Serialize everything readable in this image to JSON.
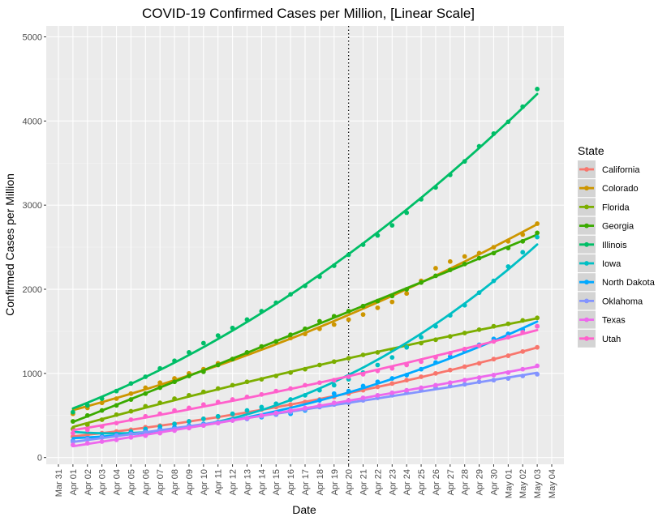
{
  "chart_data": {
    "type": "scatter",
    "title": "COVID-19 Confirmed Cases per Million, [Linear Scale]",
    "xlabel": "Date",
    "ylabel": "Confirmed Cases per Million",
    "x_ticks": [
      "Mar 31",
      "Apr 01",
      "Apr 02",
      "Apr 03",
      "Apr 04",
      "Apr 05",
      "Apr 06",
      "Apr 07",
      "Apr 08",
      "Apr 09",
      "Apr 10",
      "Apr 11",
      "Apr 12",
      "Apr 13",
      "Apr 14",
      "Apr 15",
      "Apr 16",
      "Apr 17",
      "Apr 18",
      "Apr 19",
      "Apr 20",
      "Apr 21",
      "Apr 22",
      "Apr 23",
      "Apr 24",
      "Apr 25",
      "Apr 26",
      "Apr 27",
      "Apr 28",
      "Apr 29",
      "Apr 30",
      "May 01",
      "May 02",
      "May 03",
      "May 04"
    ],
    "y_ticks": [
      0,
      1000,
      2000,
      3000,
      4000,
      5000
    ],
    "ylim": [
      -80,
      5130
    ],
    "xlim": [
      "Mar 31",
      "May 04"
    ],
    "vline": "Apr 20",
    "grid": true,
    "legend_title": "State",
    "legend_position": "right",
    "x_dates": [
      "Apr 01",
      "Apr 02",
      "Apr 03",
      "Apr 04",
      "Apr 05",
      "Apr 06",
      "Apr 07",
      "Apr 08",
      "Apr 09",
      "Apr 10",
      "Apr 11",
      "Apr 12",
      "Apr 13",
      "Apr 14",
      "Apr 15",
      "Apr 16",
      "Apr 17",
      "Apr 18",
      "Apr 19",
      "Apr 20",
      "Apr 21",
      "Apr 22",
      "Apr 23",
      "Apr 24",
      "Apr 25",
      "Apr 26",
      "Apr 27",
      "Apr 28",
      "Apr 29",
      "Apr 30",
      "May 01",
      "May 02",
      "May 03"
    ],
    "series": [
      {
        "name": "California",
        "color": "#F8766D",
        "values": [
          250,
          270,
          290,
          310,
          330,
          360,
          380,
          400,
          430,
          460,
          480,
          510,
          540,
          570,
          600,
          630,
          660,
          690,
          720,
          760,
          800,
          840,
          880,
          920,
          960,
          1000,
          1040,
          1080,
          1120,
          1170,
          1210,
          1260,
          1310
        ],
        "fit_start": 240,
        "fit_end": 1390
      },
      {
        "name": "Colorado",
        "color": "#CD9600",
        "values": [
          520,
          590,
          650,
          700,
          760,
          830,
          890,
          940,
          1000,
          1050,
          1120,
          1170,
          1240,
          1320,
          1380,
          1420,
          1470,
          1530,
          1580,
          1640,
          1700,
          1780,
          1850,
          1950,
          2100,
          2250,
          2330,
          2390,
          2430,
          2500,
          2570,
          2650,
          2780
        ],
        "fit_start": 540,
        "fit_end": 2910
      },
      {
        "name": "Florida",
        "color": "#7CAE00",
        "values": [
          340,
          390,
          450,
          510,
          550,
          610,
          650,
          700,
          740,
          780,
          820,
          860,
          900,
          930,
          970,
          1010,
          1050,
          1100,
          1140,
          1180,
          1220,
          1250,
          1280,
          1320,
          1360,
          1400,
          1440,
          1480,
          1520,
          1560,
          1590,
          1630,
          1660
        ],
        "fit_start": 330,
        "fit_end": 1680
      },
      {
        "name": "Georgia",
        "color": "#3AAA00",
        "values": [
          430,
          500,
          560,
          620,
          690,
          760,
          830,
          900,
          970,
          1020,
          1100,
          1170,
          1250,
          1320,
          1380,
          1460,
          1530,
          1620,
          1680,
          1740,
          1800,
          1860,
          1920,
          2000,
          2080,
          2160,
          2230,
          2300,
          2370,
          2430,
          2490,
          2570,
          2670
        ],
        "fit_start": 430,
        "fit_end": 2700
      },
      {
        "name": "Illinois",
        "color": "#00BE67",
        "values": [
          540,
          620,
          700,
          790,
          880,
          960,
          1060,
          1150,
          1250,
          1360,
          1450,
          1540,
          1640,
          1740,
          1840,
          1940,
          2040,
          2150,
          2280,
          2410,
          2530,
          2640,
          2760,
          2910,
          3070,
          3210,
          3360,
          3520,
          3700,
          3850,
          3990,
          4170,
          4380
        ],
        "fit_start": 540,
        "fit_end": 4850
      },
      {
        "name": "Iowa",
        "color": "#00BFC4",
        "values": [
          190,
          220,
          250,
          280,
          310,
          340,
          370,
          400,
          430,
          460,
          490,
          520,
          560,
          600,
          640,
          690,
          740,
          800,
          860,
          930,
          1010,
          1100,
          1190,
          1310,
          1430,
          1560,
          1690,
          1810,
          1960,
          2100,
          2270,
          2440,
          2620
        ],
        "fit_start": 180,
        "fit_end": 2880
      },
      {
        "name": "North Dakota",
        "color": "#00A9FF",
        "values": [
          200,
          230,
          250,
          270,
          290,
          320,
          340,
          360,
          380,
          400,
          420,
          450,
          460,
          480,
          510,
          520,
          560,
          680,
          760,
          790,
          850,
          900,
          940,
          980,
          1050,
          1130,
          1200,
          1270,
          1340,
          1410,
          1470,
          1520,
          1560
        ],
        "fit_start": 190,
        "fit_end": 1560
      },
      {
        "name": "Oklahoma",
        "color": "#8494FF",
        "values": [
          190,
          220,
          240,
          260,
          280,
          300,
          320,
          340,
          370,
          390,
          410,
          440,
          460,
          490,
          510,
          540,
          570,
          600,
          630,
          650,
          680,
          710,
          740,
          770,
          800,
          830,
          850,
          870,
          900,
          920,
          940,
          970,
          990
        ],
        "fit_start": 190,
        "fit_end": 1000
      },
      {
        "name": "Texas",
        "color": "#ED68ED",
        "values": [
          150,
          170,
          190,
          210,
          240,
          260,
          290,
          320,
          350,
          380,
          410,
          440,
          470,
          500,
          530,
          560,
          590,
          620,
          650,
          680,
          710,
          740,
          770,
          800,
          830,
          860,
          890,
          920,
          950,
          980,
          1010,
          1050,
          1090
        ],
        "fit_start": 150,
        "fit_end": 1100
      },
      {
        "name": "Utah",
        "color": "#FF61CC",
        "values": [
          290,
          330,
          370,
          410,
          450,
          490,
          520,
          560,
          590,
          630,
          660,
          690,
          720,
          750,
          790,
          820,
          860,
          890,
          920,
          960,
          990,
          1030,
          1060,
          1100,
          1140,
          1190,
          1240,
          1290,
          1330,
          1380,
          1430,
          1490,
          1560
        ],
        "fit_start": 300,
        "fit_end": 1620
      }
    ]
  }
}
